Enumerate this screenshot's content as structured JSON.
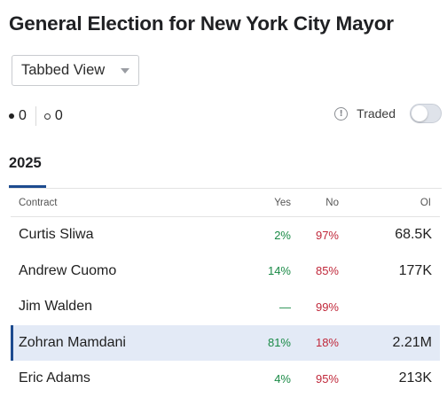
{
  "page": {
    "title": "General Election for New York City Mayor"
  },
  "view_select": {
    "selected": "Tabbed View"
  },
  "counters": {
    "filled": "0",
    "hollow": "0"
  },
  "traded": {
    "label": "Traded",
    "enabled": false
  },
  "tabs": [
    {
      "label": "2025",
      "active": true
    }
  ],
  "table": {
    "headers": {
      "contract": "Contract",
      "yes": "Yes",
      "no": "No",
      "oi": "OI"
    },
    "rows": [
      {
        "contract": "Curtis Sliwa",
        "yes": "2%",
        "no": "97%",
        "oi": "68.5K",
        "selected": false
      },
      {
        "contract": "Andrew Cuomo",
        "yes": "14%",
        "no": "85%",
        "oi": "177K",
        "selected": false
      },
      {
        "contract": "Jim Walden",
        "yes": "—",
        "no": "99%",
        "oi": "",
        "selected": false
      },
      {
        "contract": "Zohran Mamdani",
        "yes": "81%",
        "no": "18%",
        "oi": "2.21M",
        "selected": true
      },
      {
        "contract": "Eric Adams",
        "yes": "4%",
        "no": "95%",
        "oi": "213K",
        "selected": false
      }
    ]
  },
  "colors": {
    "accent": "#1d4b8f",
    "yes": "#1a8a46",
    "no": "#c0283a",
    "selected_row": "#e3eaf6"
  }
}
